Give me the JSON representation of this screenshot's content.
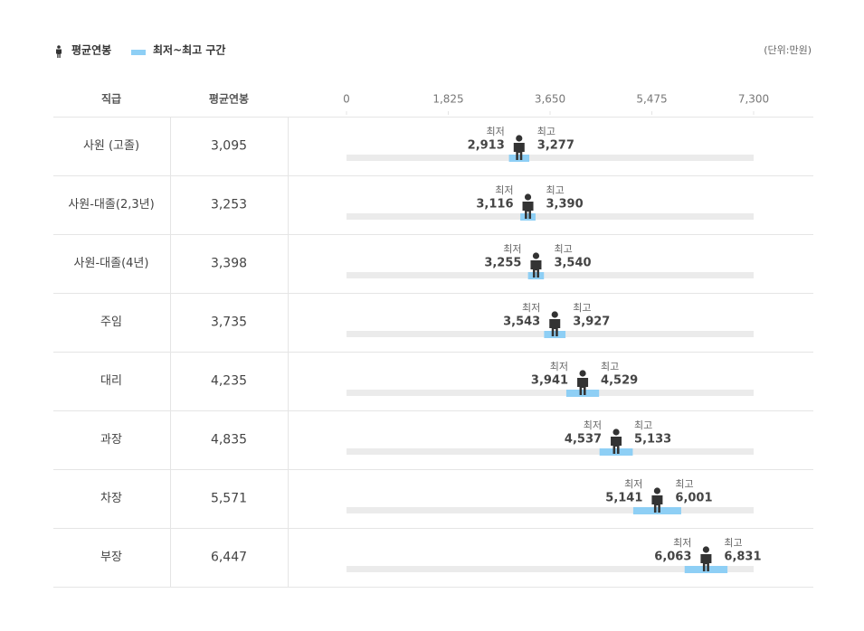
{
  "chart_data": {
    "type": "range",
    "category_header": "직급",
    "range_legend": "최저~최고 구간",
    "unit": "(단위:만원)",
    "categories": [
      "사원 (고졸)",
      "사원-대졸(2,3년)",
      "사원-대졸(4년)",
      "주임",
      "대리",
      "과장",
      "차장",
      "부장"
    ],
    "series": [
      {
        "name": "평균연봉",
        "color": "#333333",
        "values": [
          3095,
          3253,
          3398,
          3735,
          4235,
          4835,
          5571,
          6447
        ],
        "value_labels": [
          "3,095",
          "3,253",
          "3,398",
          "3,735",
          "4,235",
          "4,835",
          "5,571",
          "6,447"
        ]
      },
      {
        "name": "최저",
        "color": "#8ecff5",
        "values": [
          2913,
          3116,
          3255,
          3543,
          3941,
          4537,
          5141,
          6063
        ],
        "value_labels": [
          "2,913",
          "3,116",
          "3,255",
          "3,543",
          "3,941",
          "4,537",
          "5,141",
          "6,063"
        ]
      },
      {
        "name": "최고",
        "color": "#8ecff5",
        "values": [
          3277,
          3390,
          3540,
          3927,
          4529,
          5133,
          6001,
          6831
        ],
        "value_labels": [
          "3,277",
          "3,390",
          "3,540",
          "3,927",
          "4,529",
          "5,133",
          "6,001",
          "6,831"
        ]
      }
    ],
    "xlim": [
      0,
      7300
    ],
    "xticks": [
      0,
      {
        "value": 1825,
        "label": "1,825"
      },
      {
        "value": 3650,
        "label": "3,650"
      },
      {
        "value": 5475,
        "label": "5,475"
      },
      {
        "value": 7300,
        "label": "7,300"
      }
    ],
    "track_color": "#ebebeb"
  }
}
